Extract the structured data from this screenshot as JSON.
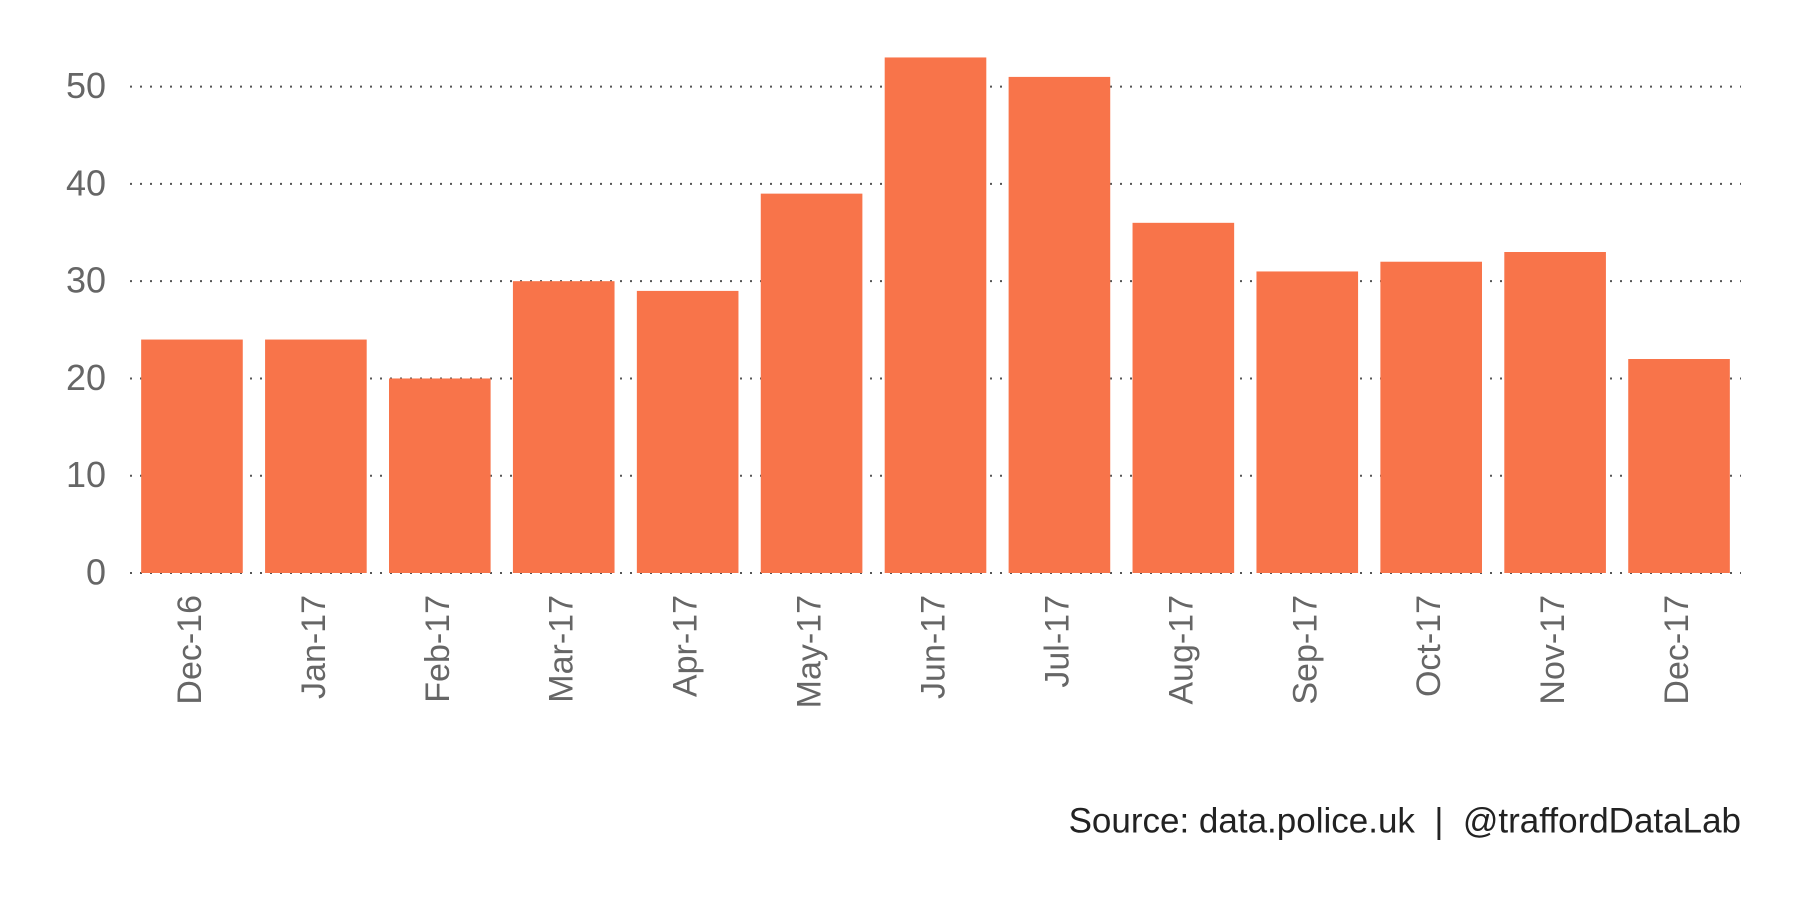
{
  "chart_data": {
    "type": "bar",
    "categories": [
      "Dec-16",
      "Jan-17",
      "Feb-17",
      "Mar-17",
      "Apr-17",
      "May-17",
      "Jun-17",
      "Jul-17",
      "Aug-17",
      "Sep-17",
      "Oct-17",
      "Nov-17",
      "Dec-17"
    ],
    "values": [
      24,
      24,
      20,
      30,
      29,
      39,
      53,
      51,
      36,
      31,
      32,
      33,
      22
    ],
    "color": "#f8744a",
    "ylim": [
      0,
      55
    ],
    "yticks": [
      0,
      10,
      20,
      30,
      40,
      50
    ],
    "grid": true,
    "caption": "Source: data.police.uk  |  @traffordDataLab"
  }
}
